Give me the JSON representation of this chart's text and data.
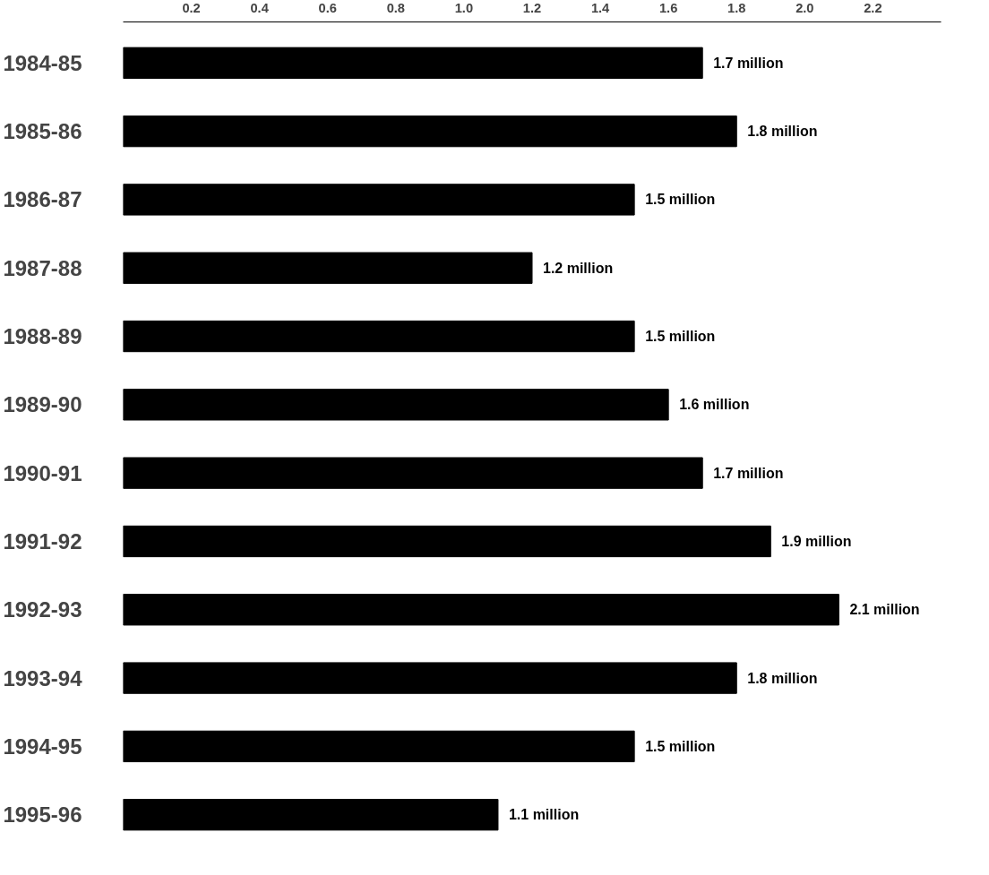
{
  "chart_data": {
    "type": "bar",
    "orientation": "horizontal",
    "categories": [
      "1984-85",
      "1985-86",
      "1986-87",
      "1987-88",
      "1988-89",
      "1989-90",
      "1990-91",
      "1991-92",
      "1992-93",
      "1993-94",
      "1994-95",
      "1995-96"
    ],
    "values": [
      1.7,
      1.8,
      1.5,
      1.2,
      1.5,
      1.6,
      1.7,
      1.9,
      2.1,
      1.8,
      1.5,
      1.1
    ],
    "value_labels": [
      "1.7 million",
      "1.8 million",
      "1.5 million",
      "1.2 million",
      "1.5 million",
      "1.6 million",
      "1.7 million",
      "1.9 million",
      "2.1 million",
      "1.8 million",
      "1.5 million",
      "1.1 million"
    ],
    "color": "#000000",
    "xlim": [
      0,
      2.4
    ],
    "xticks": [
      {
        "value": 0.2,
        "label": "0.2"
      },
      {
        "value": 0.4,
        "label": "0.4"
      },
      {
        "value": 0.6,
        "label": "0.6"
      },
      {
        "value": 0.8,
        "label": "0.8"
      },
      {
        "value": 1.0,
        "label": "1.0"
      },
      {
        "value": 1.2,
        "label": "1.2"
      },
      {
        "value": 1.4,
        "label": "1.4"
      },
      {
        "value": 1.6,
        "label": "1.6"
      },
      {
        "value": 1.8,
        "label": "1.8"
      },
      {
        "value": 2.0,
        "label": "2.0"
      },
      {
        "value": 2.2,
        "label": "2.2"
      }
    ],
    "grid": false
  }
}
